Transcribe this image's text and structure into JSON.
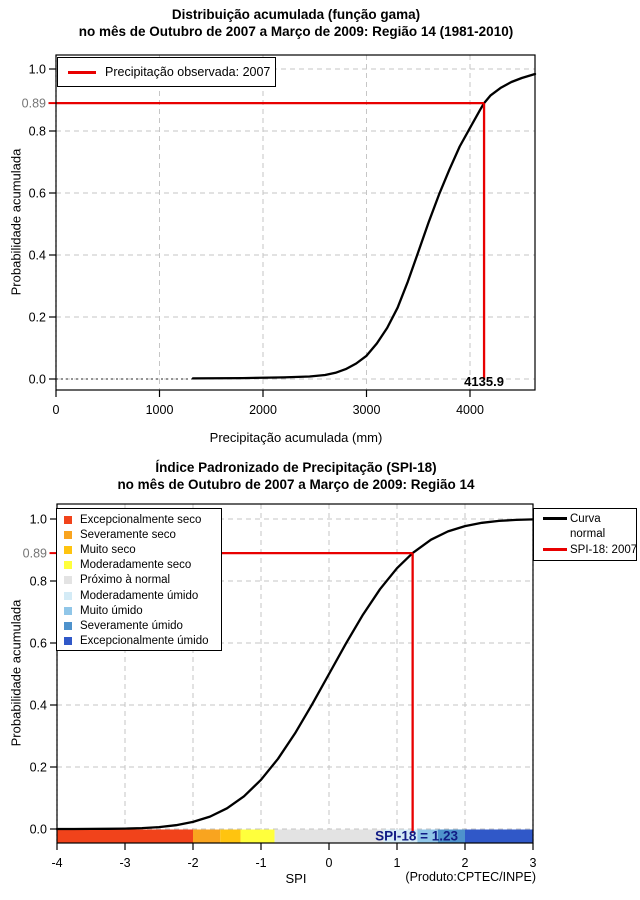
{
  "colors": {
    "red_line": "#e80000",
    "curve": "#000000",
    "grid": "#c6c6c6",
    "dark_dotted": "#2a2a2a",
    "y089_label": "#757575",
    "spi_value_text": "#111c85",
    "background": "#ffffff"
  },
  "chart_data": [
    {
      "id": "gamma-cdf",
      "type": "line",
      "title": "Distribuição acumulada (função gama)",
      "subtitle": "no mês de Outubro de 2007 a Março de 2009: Região 14 (1981-2010)",
      "xlabel": "Precipitação acumulada (mm)",
      "ylabel": "Probabilidade acumulada",
      "xlim": [
        0,
        4628
      ],
      "ylim": [
        0,
        1
      ],
      "grid": true,
      "xticks": {
        "values": [
          0,
          1000,
          2000,
          3000,
          4000
        ],
        "labels": [
          "0",
          "1000",
          "2000",
          "3000",
          "4000"
        ]
      },
      "yticks": {
        "values": [
          0.0,
          0.2,
          0.4,
          0.6,
          0.8,
          1.0
        ],
        "labels": [
          "0.0",
          "0.2",
          "0.4",
          "0.6",
          "0.8",
          "1.0"
        ]
      },
      "legend_position": "topleft",
      "legend": [
        {
          "label": "Precipitação observada: 2007",
          "color": "#e80000"
        }
      ],
      "annotation": {
        "x": 4135.9,
        "y": 0.89,
        "x_label": "4135.9",
        "y_label": "0.89"
      },
      "series": [
        {
          "name": "Distribuição gama acumulada",
          "color": "#000000",
          "points": [
            [
              1324,
              0.002
            ],
            [
              1800,
              0.003
            ],
            [
              2200,
              0.005
            ],
            [
              2450,
              0.008
            ],
            [
              2600,
              0.013
            ],
            [
              2700,
              0.02
            ],
            [
              2800,
              0.032
            ],
            [
              2900,
              0.05
            ],
            [
              3000,
              0.075
            ],
            [
              3100,
              0.115
            ],
            [
              3200,
              0.165
            ],
            [
              3300,
              0.23
            ],
            [
              3400,
              0.315
            ],
            [
              3500,
              0.41
            ],
            [
              3600,
              0.505
            ],
            [
              3700,
              0.595
            ],
            [
              3800,
              0.675
            ],
            [
              3900,
              0.75
            ],
            [
              4000,
              0.81
            ],
            [
              4100,
              0.87
            ],
            [
              4135.9,
              0.89
            ],
            [
              4200,
              0.915
            ],
            [
              4300,
              0.94
            ],
            [
              4400,
              0.958
            ],
            [
              4500,
              0.971
            ],
            [
              4628,
              0.984
            ]
          ]
        }
      ]
    },
    {
      "id": "spi-cdf",
      "type": "line",
      "title": "Índice Padronizado de Precipitação (SPI-18)",
      "subtitle": "no mês de Outubro de 2007 a Março de 2009: Região 14",
      "xlabel": "SPI",
      "ylabel": "Probabilidade acumulada",
      "xlim": [
        -4,
        3
      ],
      "ylim": [
        0,
        1
      ],
      "grid": true,
      "xticks": {
        "values": [
          -4,
          -3,
          -2,
          -1,
          0,
          1,
          2,
          3
        ],
        "labels": [
          "-4",
          "-3",
          "-2",
          "-1",
          "0",
          "1",
          "2",
          "3"
        ]
      },
      "yticks": {
        "values": [
          0.0,
          0.2,
          0.4,
          0.6,
          0.8,
          1.0
        ],
        "labels": [
          "0.0",
          "0.2",
          "0.4",
          "0.6",
          "0.8",
          "1.0"
        ]
      },
      "legend_position": "topright",
      "legend": [
        {
          "label_lines": [
            "Curva",
            "normal"
          ],
          "color": "#000000"
        },
        {
          "label_lines": [
            "SPI-18: 2007"
          ],
          "color": "#e80000"
        }
      ],
      "categories": [
        {
          "label": "Excepcionalmente seco",
          "color": "#f1431b"
        },
        {
          "label": "Severamente seco",
          "color": "#f9a41f"
        },
        {
          "label": "Muito seco",
          "color": "#ffc40f"
        },
        {
          "label": "Moderadamente seco",
          "color": "#ffff3c"
        },
        {
          "label": "Próximo à normal",
          "color": "#e3e3e3"
        },
        {
          "label": "Moderadamente úmido",
          "color": "#d4ebf6"
        },
        {
          "label": "Muito úmido",
          "color": "#90c6e8"
        },
        {
          "label": "Severamente úmido",
          "color": "#4e92cc"
        },
        {
          "label": "Excepcionalmente úmido",
          "color": "#3058c8"
        }
      ],
      "category_bar": [
        {
          "from": -4.0,
          "to": -2.0,
          "color": "#f1431b"
        },
        {
          "from": -2.0,
          "to": -1.6,
          "color": "#f9a41f"
        },
        {
          "from": -1.6,
          "to": -1.3,
          "color": "#ffc40f"
        },
        {
          "from": -1.3,
          "to": -0.8,
          "color": "#ffff3c"
        },
        {
          "from": -0.8,
          "to": 0.8,
          "color": "#e3e3e3"
        },
        {
          "from": 0.8,
          "to": 1.3,
          "color": "#d4ebf6"
        },
        {
          "from": 1.3,
          "to": 1.6,
          "color": "#90c6e8"
        },
        {
          "from": 1.6,
          "to": 2.0,
          "color": "#4e92cc"
        },
        {
          "from": 2.0,
          "to": 3.0,
          "color": "#3058c8"
        }
      ],
      "annotation": {
        "x": 1.23,
        "y": 0.89,
        "text": "SPI-18 = 1.23",
        "y_label": "0.89"
      },
      "footnote": "(Produto:CPTEC/INPE)",
      "series": [
        {
          "name": "Curva normal",
          "color": "#000000",
          "points": [
            [
              -4,
              0.0
            ],
            [
              -3.75,
              0.0001
            ],
            [
              -3.5,
              0.0002
            ],
            [
              -3.25,
              0.0006
            ],
            [
              -3,
              0.0013
            ],
            [
              -2.75,
              0.003
            ],
            [
              -2.5,
              0.0062
            ],
            [
              -2.25,
              0.0122
            ],
            [
              -2,
              0.0228
            ],
            [
              -1.75,
              0.0401
            ],
            [
              -1.5,
              0.0668
            ],
            [
              -1.25,
              0.1056
            ],
            [
              -1,
              0.1587
            ],
            [
              -0.75,
              0.2266
            ],
            [
              -0.5,
              0.3085
            ],
            [
              -0.25,
              0.4013
            ],
            [
              0,
              0.5
            ],
            [
              0.25,
              0.5987
            ],
            [
              0.5,
              0.6915
            ],
            [
              0.75,
              0.7734
            ],
            [
              1,
              0.8413
            ],
            [
              1.23,
              0.89
            ],
            [
              1.5,
              0.9332
            ],
            [
              1.75,
              0.9599
            ],
            [
              2,
              0.9772
            ],
            [
              2.25,
              0.9878
            ],
            [
              2.5,
              0.9938
            ],
            [
              2.75,
              0.997
            ],
            [
              3,
              0.9987
            ]
          ]
        }
      ]
    }
  ]
}
